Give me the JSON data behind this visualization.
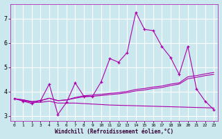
{
  "background_color": "#cce8ef",
  "grid_color": "#ffffff",
  "line_color": "#aa00aa",
  "xlabel": "Windchill (Refroidissement éolien,°C)",
  "xlim": [
    -0.5,
    23.5
  ],
  "ylim": [
    2.8,
    7.6
  ],
  "yticks": [
    3,
    4,
    5,
    6,
    7
  ],
  "xticks": [
    0,
    1,
    2,
    3,
    4,
    5,
    6,
    7,
    8,
    9,
    10,
    11,
    12,
    13,
    14,
    15,
    16,
    17,
    18,
    19,
    20,
    21,
    22,
    23
  ],
  "series1_x": [
    0,
    1,
    2,
    3,
    4,
    5,
    6,
    7,
    8,
    9,
    10,
    11,
    12,
    13,
    14,
    15,
    16,
    17,
    18,
    19,
    20,
    21,
    22,
    23
  ],
  "series1_y": [
    3.7,
    3.6,
    3.5,
    3.62,
    4.3,
    3.05,
    3.55,
    4.35,
    3.8,
    3.8,
    4.4,
    5.35,
    5.2,
    5.6,
    7.25,
    6.55,
    6.5,
    5.85,
    5.4,
    4.7,
    5.85,
    4.1,
    3.6,
    3.25
  ],
  "series2_x": [
    0,
    1,
    2,
    3,
    4,
    5,
    6,
    7,
    8,
    9,
    10,
    11,
    12,
    13,
    14,
    15,
    16,
    17,
    18,
    19,
    20,
    21,
    22,
    23
  ],
  "series2_y": [
    3.7,
    3.65,
    3.58,
    3.62,
    3.72,
    3.62,
    3.65,
    3.75,
    3.82,
    3.85,
    3.88,
    3.92,
    3.95,
    4.0,
    4.08,
    4.12,
    4.18,
    4.22,
    4.3,
    4.35,
    4.6,
    4.65,
    4.72,
    4.78
  ],
  "series3_x": [
    0,
    1,
    2,
    3,
    4,
    5,
    6,
    7,
    8,
    9,
    10,
    11,
    12,
    13,
    14,
    15,
    16,
    17,
    18,
    19,
    20,
    21,
    22,
    23
  ],
  "series3_y": [
    3.7,
    3.65,
    3.58,
    3.62,
    3.72,
    3.62,
    3.65,
    3.72,
    3.78,
    3.8,
    3.83,
    3.87,
    3.9,
    3.95,
    4.02,
    4.06,
    4.12,
    4.16,
    4.24,
    4.3,
    4.52,
    4.58,
    4.65,
    4.7
  ],
  "series4_x": [
    0,
    1,
    2,
    3,
    4,
    5,
    6,
    7,
    8,
    9,
    10,
    11,
    12,
    13,
    14,
    15,
    16,
    17,
    18,
    19,
    20,
    21,
    22,
    23
  ],
  "series4_y": [
    3.7,
    3.62,
    3.55,
    3.55,
    3.6,
    3.52,
    3.52,
    3.52,
    3.5,
    3.48,
    3.46,
    3.44,
    3.43,
    3.42,
    3.41,
    3.4,
    3.39,
    3.38,
    3.37,
    3.36,
    3.35,
    3.34,
    3.33,
    3.32
  ]
}
